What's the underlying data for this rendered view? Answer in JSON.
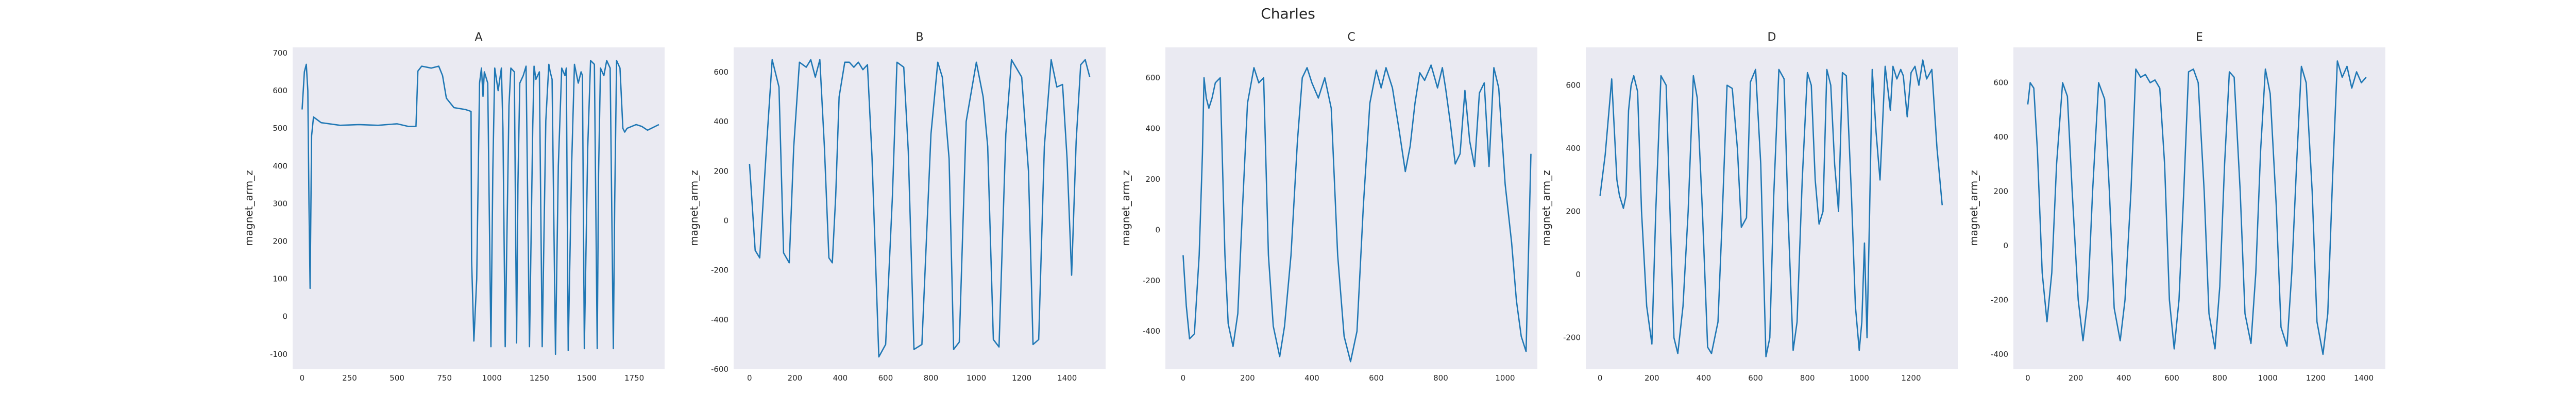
{
  "figure": {
    "title": "Charles"
  },
  "colors": {
    "line": "#1f77b4",
    "plot_background": "#eaeaf2"
  },
  "chart_data": [
    {
      "type": "line",
      "title": "A",
      "ylabel": "magnet_arm_z",
      "xlabel": "",
      "xlim": [
        -50,
        1910
      ],
      "ylim": [
        -140,
        715
      ],
      "xticks": [
        0,
        250,
        500,
        750,
        1000,
        1250,
        1500,
        1750
      ],
      "yticks": [
        -100,
        0,
        100,
        200,
        300,
        400,
        500,
        600,
        700
      ],
      "grid": false,
      "x": [
        0,
        12,
        22,
        30,
        36,
        42,
        50,
        60,
        100,
        200,
        300,
        400,
        500,
        560,
        600,
        610,
        630,
        680,
        720,
        740,
        760,
        800,
        860,
        890,
        893,
        905,
        920,
        935,
        945,
        953,
        960,
        978,
        995,
        1005,
        1015,
        1033,
        1050,
        1058,
        1070,
        1090,
        1100,
        1118,
        1130,
        1137,
        1147,
        1165,
        1180,
        1198,
        1215,
        1222,
        1232,
        1250,
        1265,
        1284,
        1300,
        1307,
        1317,
        1335,
        1350,
        1368,
        1385,
        1392,
        1402,
        1420,
        1435,
        1455,
        1470,
        1477,
        1487,
        1505,
        1520,
        1540,
        1555,
        1562,
        1572,
        1590,
        1605,
        1623,
        1640,
        1647,
        1657,
        1675,
        1690,
        1700,
        1712,
        1760,
        1790,
        1820,
        1840,
        1860,
        1880
      ],
      "values": [
        550,
        650,
        670,
        600,
        300,
        75,
        480,
        530,
        515,
        508,
        510,
        508,
        512,
        505,
        505,
        652,
        665,
        660,
        665,
        640,
        580,
        555,
        550,
        545,
        150,
        -65,
        100,
        620,
        660,
        585,
        650,
        620,
        -80,
        390,
        660,
        600,
        660,
        500,
        -80,
        560,
        660,
        650,
        -70,
        350,
        620,
        640,
        665,
        -80,
        500,
        665,
        630,
        650,
        -80,
        520,
        670,
        650,
        630,
        -100,
        400,
        660,
        640,
        660,
        -90,
        400,
        670,
        620,
        650,
        640,
        -85,
        450,
        680,
        670,
        -85,
        380,
        660,
        640,
        680,
        660,
        -85,
        300,
        680,
        660,
        500,
        490,
        500,
        510,
        505,
        495,
        500,
        505,
        510
      ]
    },
    {
      "type": "line",
      "title": "B",
      "ylabel": "magnet_arm_z",
      "xlabel": "",
      "xlim": [
        -70,
        1570
      ],
      "ylim": [
        -600,
        700
      ],
      "xticks": [
        0,
        200,
        400,
        600,
        800,
        1000,
        1200,
        1400
      ],
      "yticks": [
        -600,
        -400,
        -200,
        0,
        200,
        400,
        600
      ],
      "grid": false,
      "x": [
        0,
        25,
        45,
        75,
        100,
        130,
        150,
        175,
        195,
        220,
        250,
        270,
        290,
        310,
        330,
        350,
        365,
        380,
        395,
        420,
        440,
        460,
        480,
        500,
        520,
        540,
        570,
        600,
        630,
        650,
        680,
        700,
        725,
        760,
        800,
        830,
        850,
        880,
        900,
        925,
        955,
        1000,
        1030,
        1050,
        1075,
        1100,
        1130,
        1155,
        1200,
        1230,
        1250,
        1275,
        1300,
        1330,
        1355,
        1380,
        1400,
        1420,
        1440,
        1460,
        1480,
        1500
      ],
      "values": [
        230,
        -120,
        -150,
        300,
        650,
        540,
        -130,
        -170,
        300,
        640,
        620,
        650,
        580,
        650,
        300,
        -150,
        -170,
        100,
        500,
        640,
        640,
        620,
        640,
        610,
        630,
        260,
        -550,
        -500,
        100,
        640,
        620,
        280,
        -520,
        -500,
        350,
        640,
        580,
        250,
        -520,
        -490,
        400,
        640,
        500,
        300,
        -480,
        -510,
        350,
        650,
        580,
        200,
        -500,
        -480,
        300,
        650,
        540,
        550,
        250,
        -220,
        320,
        630,
        650,
        580
      ]
    },
    {
      "type": "line",
      "title": "C",
      "ylabel": "magnet_arm_z",
      "xlabel": "",
      "xlim": [
        -55,
        1100
      ],
      "ylim": [
        -550,
        720
      ],
      "xticks": [
        0,
        200,
        400,
        600,
        800,
        1000
      ],
      "yticks": [
        -400,
        -200,
        0,
        200,
        400,
        600
      ],
      "grid": false,
      "x": [
        0,
        10,
        20,
        35,
        50,
        60,
        65,
        72,
        80,
        90,
        100,
        115,
        130,
        140,
        155,
        170,
        185,
        200,
        220,
        235,
        250,
        265,
        280,
        300,
        315,
        335,
        355,
        370,
        385,
        400,
        420,
        440,
        460,
        480,
        500,
        520,
        540,
        560,
        580,
        600,
        615,
        630,
        650,
        670,
        690,
        705,
        720,
        735,
        750,
        770,
        790,
        805,
        815,
        830,
        845,
        860,
        875,
        890,
        905,
        920,
        935,
        950,
        965,
        980,
        1000,
        1020,
        1035,
        1050,
        1065,
        1080
      ],
      "values": [
        -100,
        -300,
        -430,
        -410,
        -100,
        300,
        600,
        520,
        480,
        520,
        580,
        600,
        -100,
        -370,
        -460,
        -330,
        100,
        500,
        640,
        580,
        600,
        -100,
        -380,
        -500,
        -380,
        -100,
        350,
        600,
        640,
        580,
        520,
        600,
        480,
        -100,
        -420,
        -520,
        -400,
        100,
        500,
        630,
        560,
        640,
        560,
        400,
        230,
        330,
        500,
        620,
        590,
        650,
        560,
        640,
        560,
        420,
        260,
        300,
        550,
        350,
        250,
        540,
        580,
        250,
        640,
        560,
        180,
        -50,
        -280,
        -420,
        -480,
        300
      ]
    },
    {
      "type": "line",
      "title": "D",
      "ylabel": "magnet_arm_z",
      "xlabel": "",
      "xlim": [
        -55,
        1380
      ],
      "ylim": [
        -300,
        720
      ],
      "xticks": [
        0,
        200,
        400,
        600,
        800,
        1000,
        1200
      ],
      "yticks": [
        -200,
        0,
        200,
        400,
        600
      ],
      "grid": false,
      "x": [
        0,
        20,
        45,
        65,
        75,
        90,
        100,
        110,
        120,
        130,
        145,
        160,
        180,
        200,
        215,
        235,
        255,
        270,
        285,
        300,
        320,
        340,
        360,
        375,
        395,
        415,
        430,
        455,
        470,
        490,
        510,
        530,
        545,
        565,
        580,
        600,
        620,
        640,
        655,
        670,
        690,
        710,
        725,
        745,
        760,
        780,
        800,
        815,
        830,
        845,
        860,
        875,
        890,
        905,
        920,
        935,
        950,
        970,
        985,
        1000,
        1010,
        1020,
        1030,
        1040,
        1050,
        1065,
        1080,
        1100,
        1120,
        1130,
        1145,
        1160,
        1170,
        1185,
        1200,
        1215,
        1230,
        1245,
        1260,
        1280,
        1300,
        1320
      ],
      "values": [
        250,
        380,
        620,
        300,
        250,
        210,
        250,
        520,
        600,
        630,
        580,
        200,
        -100,
        -220,
        200,
        630,
        600,
        200,
        -200,
        -250,
        -100,
        200,
        630,
        560,
        200,
        -230,
        -250,
        -150,
        150,
        600,
        590,
        400,
        150,
        180,
        610,
        650,
        350,
        -260,
        -200,
        250,
        650,
        620,
        200,
        -240,
        -150,
        300,
        640,
        600,
        300,
        160,
        200,
        650,
        600,
        350,
        200,
        640,
        630,
        250,
        -100,
        -240,
        -150,
        100,
        -200,
        200,
        650,
        450,
        300,
        660,
        520,
        660,
        620,
        650,
        630,
        500,
        640,
        660,
        600,
        680,
        620,
        650,
        400,
        220
      ]
    },
    {
      "type": "line",
      "title": "E",
      "ylabel": "magnet_arm_z",
      "xlabel": "",
      "xlim": [
        -60,
        1490
      ],
      "ylim": [
        -455,
        730
      ],
      "xticks": [
        0,
        200,
        400,
        600,
        800,
        1000,
        1200,
        1400
      ],
      "yticks": [
        -400,
        -200,
        0,
        200,
        400,
        600
      ],
      "grid": false,
      "x": [
        0,
        10,
        25,
        40,
        60,
        80,
        100,
        120,
        145,
        165,
        185,
        210,
        230,
        250,
        270,
        295,
        320,
        340,
        360,
        385,
        405,
        430,
        450,
        470,
        490,
        510,
        530,
        550,
        570,
        590,
        610,
        630,
        650,
        670,
        690,
        710,
        735,
        755,
        780,
        800,
        820,
        840,
        860,
        885,
        905,
        930,
        950,
        970,
        990,
        1010,
        1035,
        1055,
        1080,
        1100,
        1120,
        1140,
        1160,
        1185,
        1205,
        1230,
        1250,
        1270,
        1290,
        1310,
        1330,
        1350,
        1370,
        1390,
        1410
      ],
      "values": [
        520,
        600,
        580,
        350,
        -100,
        -280,
        -100,
        300,
        600,
        550,
        200,
        -200,
        -350,
        -200,
        200,
        600,
        540,
        200,
        -230,
        -350,
        -200,
        200,
        650,
        620,
        630,
        600,
        610,
        580,
        300,
        -200,
        -380,
        -200,
        200,
        640,
        650,
        600,
        200,
        -250,
        -380,
        -150,
        300,
        640,
        620,
        200,
        -250,
        -360,
        -100,
        350,
        650,
        560,
        150,
        -300,
        -370,
        -100,
        300,
        660,
        600,
        200,
        -280,
        -400,
        -250,
        250,
        680,
        620,
        660,
        580,
        640,
        600,
        620
      ]
    }
  ]
}
